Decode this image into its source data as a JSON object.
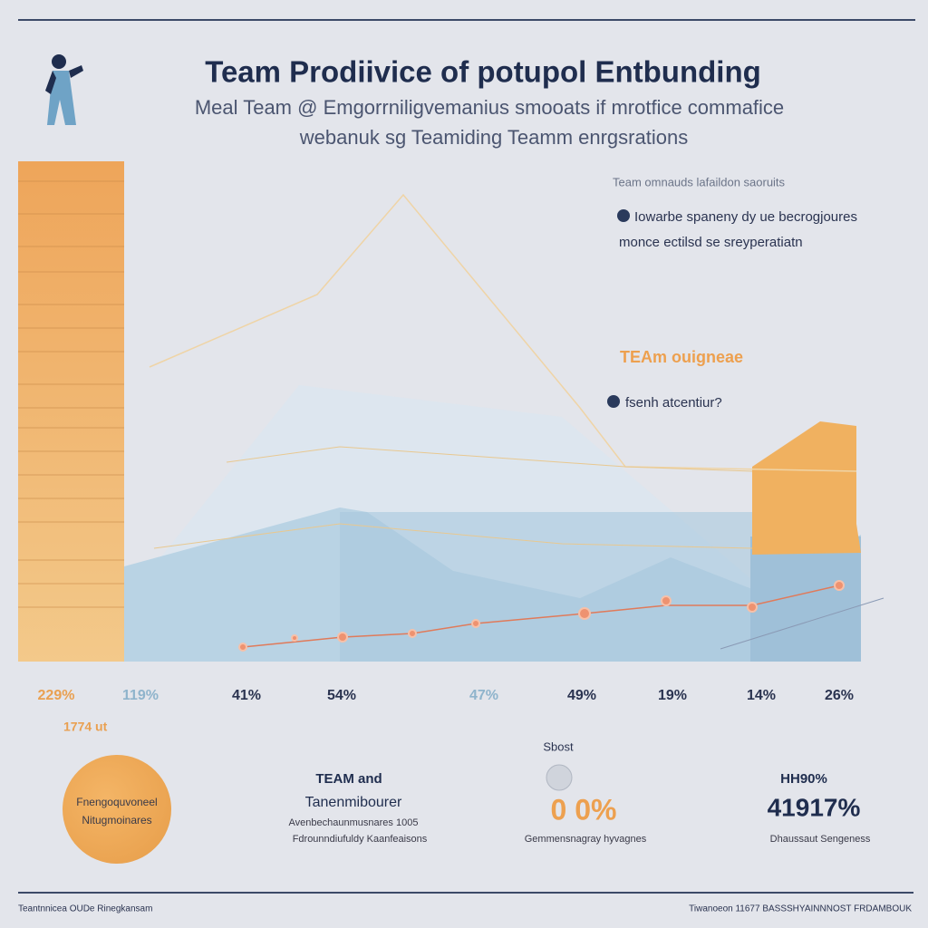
{
  "header": {
    "title": "Team Prodiivice  of potupol Entbunding",
    "subtitle": [
      "Meal Team @ Emgorrniligvemanius smooats if mrotfice commafice",
      "webanuk sg Teamiding Teamm enrgsrations"
    ]
  },
  "chart": {
    "notes": [
      "Team omnauds lafaildon saoruits",
      "Iowarbe spaneny dy ue becrogjoures",
      "monce ectilsd se sreyperatiatn"
    ],
    "callout": "TEAm ouigneae",
    "callout_sub": "fsenh atcentiur?",
    "labels": [
      "229%",
      "119%",
      "41%",
      "54%",
      "47%",
      "49%",
      "19%",
      "14%",
      "26%"
    ],
    "sub_label": "1774 ut"
  },
  "stats": [
    {
      "lines": [
        "Fnengoquvoneel",
        "Nitugmoinares"
      ]
    },
    {
      "lines": [
        "TEAM and",
        "Tanenmibourer",
        "Avenbechaunmusnares 1005",
        "Fdrounndiufuldy Kaanfeaisons"
      ]
    },
    {
      "lines": [
        "Sbost",
        "0 0%",
        "Gemmensnagray hyvagnes"
      ]
    },
    {
      "lines": [
        "HH90%",
        "41917%",
        "Dhaussaut Sengeness"
      ]
    }
  ],
  "footer": {
    "left": "Teantnnicea OUDe Rinegkansam",
    "right": "Tiwanoeon 11677 BASSSHYAINNNOST FRDAMBOUK"
  }
}
